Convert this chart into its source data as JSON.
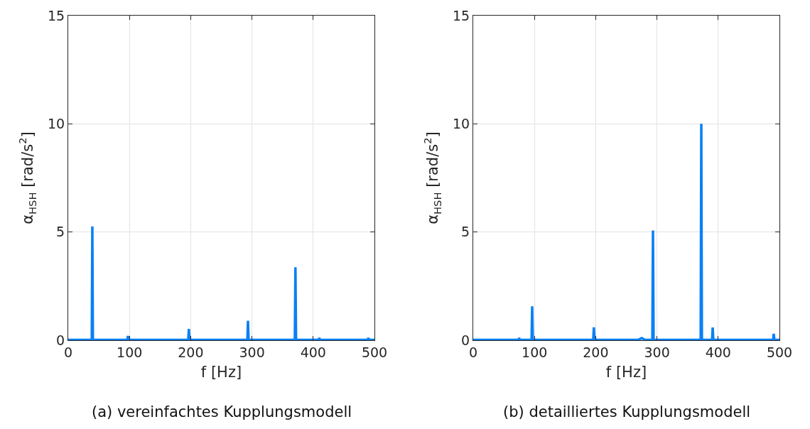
{
  "chart_data": [
    {
      "type": "line",
      "xlabel": "f [Hz]",
      "ylabel": "α$_{HSH}$ [rad/s$^{2}$]",
      "annotations": [
        "(a) vereinfachtes Kupplungsmodell"
      ],
      "xlim": [
        0,
        500
      ],
      "ylim": [
        0,
        15
      ],
      "xticks": [
        0,
        100,
        200,
        300,
        400,
        500
      ],
      "yticks": [
        0,
        5,
        10,
        15
      ],
      "grid": true,
      "series": [
        {
          "color": "#0a80f5",
          "x": [
            0,
            38.5,
            39.4,
            40.3,
            96.5,
            97.5,
            98.5,
            196,
            197,
            198,
            292.5,
            293.5,
            294.5,
            370,
            371,
            372,
            409,
            410,
            411,
            489,
            490,
            491,
            500
          ],
          "values": [
            0.02,
            0.02,
            5.26,
            0.02,
            0.02,
            0.2,
            0.02,
            0.02,
            0.52,
            0.02,
            0.02,
            0.9,
            0.02,
            0.02,
            3.37,
            0.02,
            0.02,
            0.1,
            0.02,
            0.02,
            0.1,
            0.02,
            0.02
          ]
        }
      ]
    },
    {
      "type": "line",
      "xlabel": "f [Hz]",
      "ylabel": "α$_{HSH}$ [rad/s$^{2}$]",
      "annotations": [
        "(b) detailliertes Kupplungsmodell"
      ],
      "xlim": [
        0,
        500
      ],
      "ylim": [
        0,
        15
      ],
      "xticks": [
        0,
        100,
        200,
        300,
        400,
        500
      ],
      "yticks": [
        0,
        5,
        10,
        15
      ],
      "grid": true,
      "series": [
        {
          "color": "#0a80f5",
          "x": [
            0,
            74,
            75,
            76,
            95.3,
            96.3,
            97.3,
            196,
            197,
            198,
            270,
            275,
            280,
            292.5,
            293.5,
            294.5,
            371.4,
            372.4,
            373.4,
            390,
            391,
            392,
            489.7,
            490.7,
            491.7,
            500
          ],
          "values": [
            0.02,
            0.02,
            0.1,
            0.02,
            0.02,
            1.57,
            0.02,
            0.02,
            0.6,
            0.02,
            0.02,
            0.1,
            0.02,
            0.02,
            5.07,
            0.02,
            0.02,
            10.0,
            0.02,
            0.02,
            0.59,
            0.02,
            0.02,
            0.3,
            0.02,
            0.02
          ]
        }
      ]
    }
  ]
}
